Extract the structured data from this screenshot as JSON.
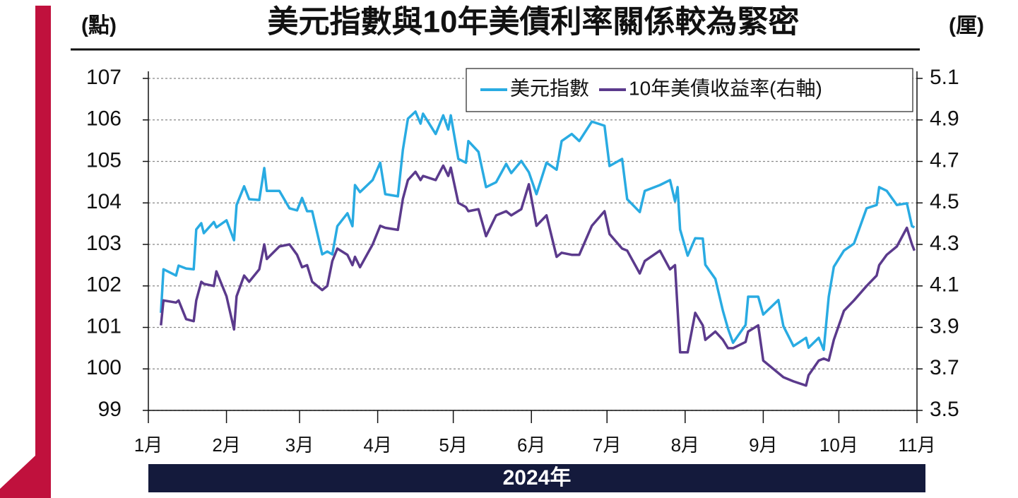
{
  "chart_data": {
    "type": "line",
    "title": "美元指數與10年美債利率關係較為緊密",
    "y_label": "(點)",
    "y2_label": "(厘)",
    "x_label": "2024年",
    "x": [
      5,
      6,
      11,
      12,
      15,
      18,
      19,
      21,
      22,
      26,
      27,
      31,
      34,
      35,
      38,
      40,
      44,
      46,
      47,
      52,
      56,
      59,
      61,
      63,
      65,
      69,
      71,
      73,
      75,
      79,
      81,
      82,
      84,
      89,
      92,
      94,
      99,
      101,
      103,
      106,
      108,
      109,
      114,
      117,
      119,
      120,
      123,
      126,
      127,
      131,
      134,
      138,
      142,
      144,
      148,
      151,
      154,
      158,
      162,
      164,
      168,
      171,
      176,
      181,
      183,
      188,
      190,
      195,
      197,
      203,
      207,
      209,
      210,
      211,
      214,
      217,
      220,
      221,
      225,
      228,
      230,
      232,
      237,
      238,
      242,
      244,
      250,
      252,
      256,
      261,
      262,
      266,
      268,
      270,
      272,
      276,
      280,
      285,
      289,
      290,
      293,
      297,
      301,
      303,
      304
    ],
    "xlim": [
      0,
      305
    ],
    "xticks": [
      {
        "value": 0,
        "label": "1月"
      },
      {
        "value": 31,
        "label": "2月"
      },
      {
        "value": 60,
        "label": "3月"
      },
      {
        "value": 91,
        "label": "4月"
      },
      {
        "value": 121,
        "label": "5月"
      },
      {
        "value": 152,
        "label": "6月"
      },
      {
        "value": 182,
        "label": "7月"
      },
      {
        "value": 213,
        "label": "8月"
      },
      {
        "value": 244,
        "label": "9月"
      },
      {
        "value": 274,
        "label": "10月"
      },
      {
        "value": 305,
        "label": "11月"
      }
    ],
    "ylim": [
      99,
      107
    ],
    "yticks": [
      99,
      100,
      101,
      102,
      103,
      104,
      105,
      106,
      107
    ],
    "y2lim": [
      3.5,
      5.1
    ],
    "y2ticks": [
      3.5,
      3.7,
      3.9,
      4.1,
      4.3,
      4.5,
      4.7,
      4.9,
      5.1
    ],
    "grid": true,
    "series": [
      {
        "name": "美元指數",
        "color": "#29abe2",
        "values": [
          101.35,
          102.4,
          102.25,
          102.49,
          102.42,
          102.4,
          103.36,
          103.51,
          103.27,
          103.54,
          103.41,
          103.58,
          103.1,
          103.95,
          104.4,
          104.09,
          104.07,
          104.84,
          104.29,
          104.29,
          103.87,
          103.82,
          104.12,
          103.8,
          103.8,
          102.76,
          102.83,
          102.76,
          103.44,
          103.75,
          103.44,
          104.43,
          104.26,
          104.55,
          104.97,
          104.21,
          104.16,
          105.28,
          106.03,
          106.2,
          105.91,
          106.15,
          105.66,
          106.11,
          105.77,
          106.11,
          105.06,
          104.97,
          105.49,
          105.23,
          104.38,
          104.5,
          104.94,
          104.72,
          105.01,
          104.74,
          104.21,
          104.97,
          104.8,
          105.49,
          105.66,
          105.49,
          105.96,
          105.86,
          104.89,
          105.06,
          104.09,
          103.78,
          104.29,
          104.43,
          104.55,
          104.04,
          104.38,
          103.36,
          102.73,
          103.15,
          103.14,
          102.51,
          102.17,
          101.4,
          100.97,
          100.63,
          101.06,
          101.74,
          101.74,
          101.31,
          101.66,
          101.03,
          100.55,
          100.75,
          100.51,
          100.75,
          100.46,
          101.74,
          102.46,
          102.85,
          103.02,
          103.87,
          103.95,
          104.38,
          104.29,
          103.95,
          103.99,
          103.44,
          103.41
        ]
      },
      {
        "name": "10年美債收益率(右軸)",
        "color": "#5b3a8c",
        "axis": "y2",
        "values": [
          3.91,
          4.03,
          4.02,
          4.03,
          3.94,
          3.93,
          4.03,
          4.12,
          4.11,
          4.1,
          4.17,
          4.05,
          3.89,
          4.05,
          4.15,
          4.12,
          4.18,
          4.3,
          4.23,
          4.29,
          4.3,
          4.25,
          4.19,
          4.2,
          4.12,
          4.08,
          4.1,
          4.22,
          4.28,
          4.25,
          4.2,
          4.24,
          4.19,
          4.3,
          4.39,
          4.38,
          4.37,
          4.52,
          4.61,
          4.65,
          4.61,
          4.63,
          4.61,
          4.68,
          4.63,
          4.67,
          4.5,
          4.48,
          4.46,
          4.47,
          4.34,
          4.44,
          4.46,
          4.44,
          4.47,
          4.59,
          4.39,
          4.44,
          4.24,
          4.26,
          4.25,
          4.25,
          4.39,
          4.46,
          4.35,
          4.28,
          4.27,
          4.16,
          4.22,
          4.27,
          4.18,
          4.2,
          3.99,
          3.78,
          3.78,
          3.97,
          3.91,
          3.84,
          3.88,
          3.84,
          3.8,
          3.8,
          3.83,
          3.88,
          3.91,
          3.74,
          3.68,
          3.66,
          3.64,
          3.62,
          3.67,
          3.74,
          3.75,
          3.74,
          3.84,
          3.98,
          4.03,
          4.1,
          4.15,
          4.2,
          4.25,
          4.29,
          4.38,
          4.3,
          4.27
        ]
      }
    ]
  }
}
